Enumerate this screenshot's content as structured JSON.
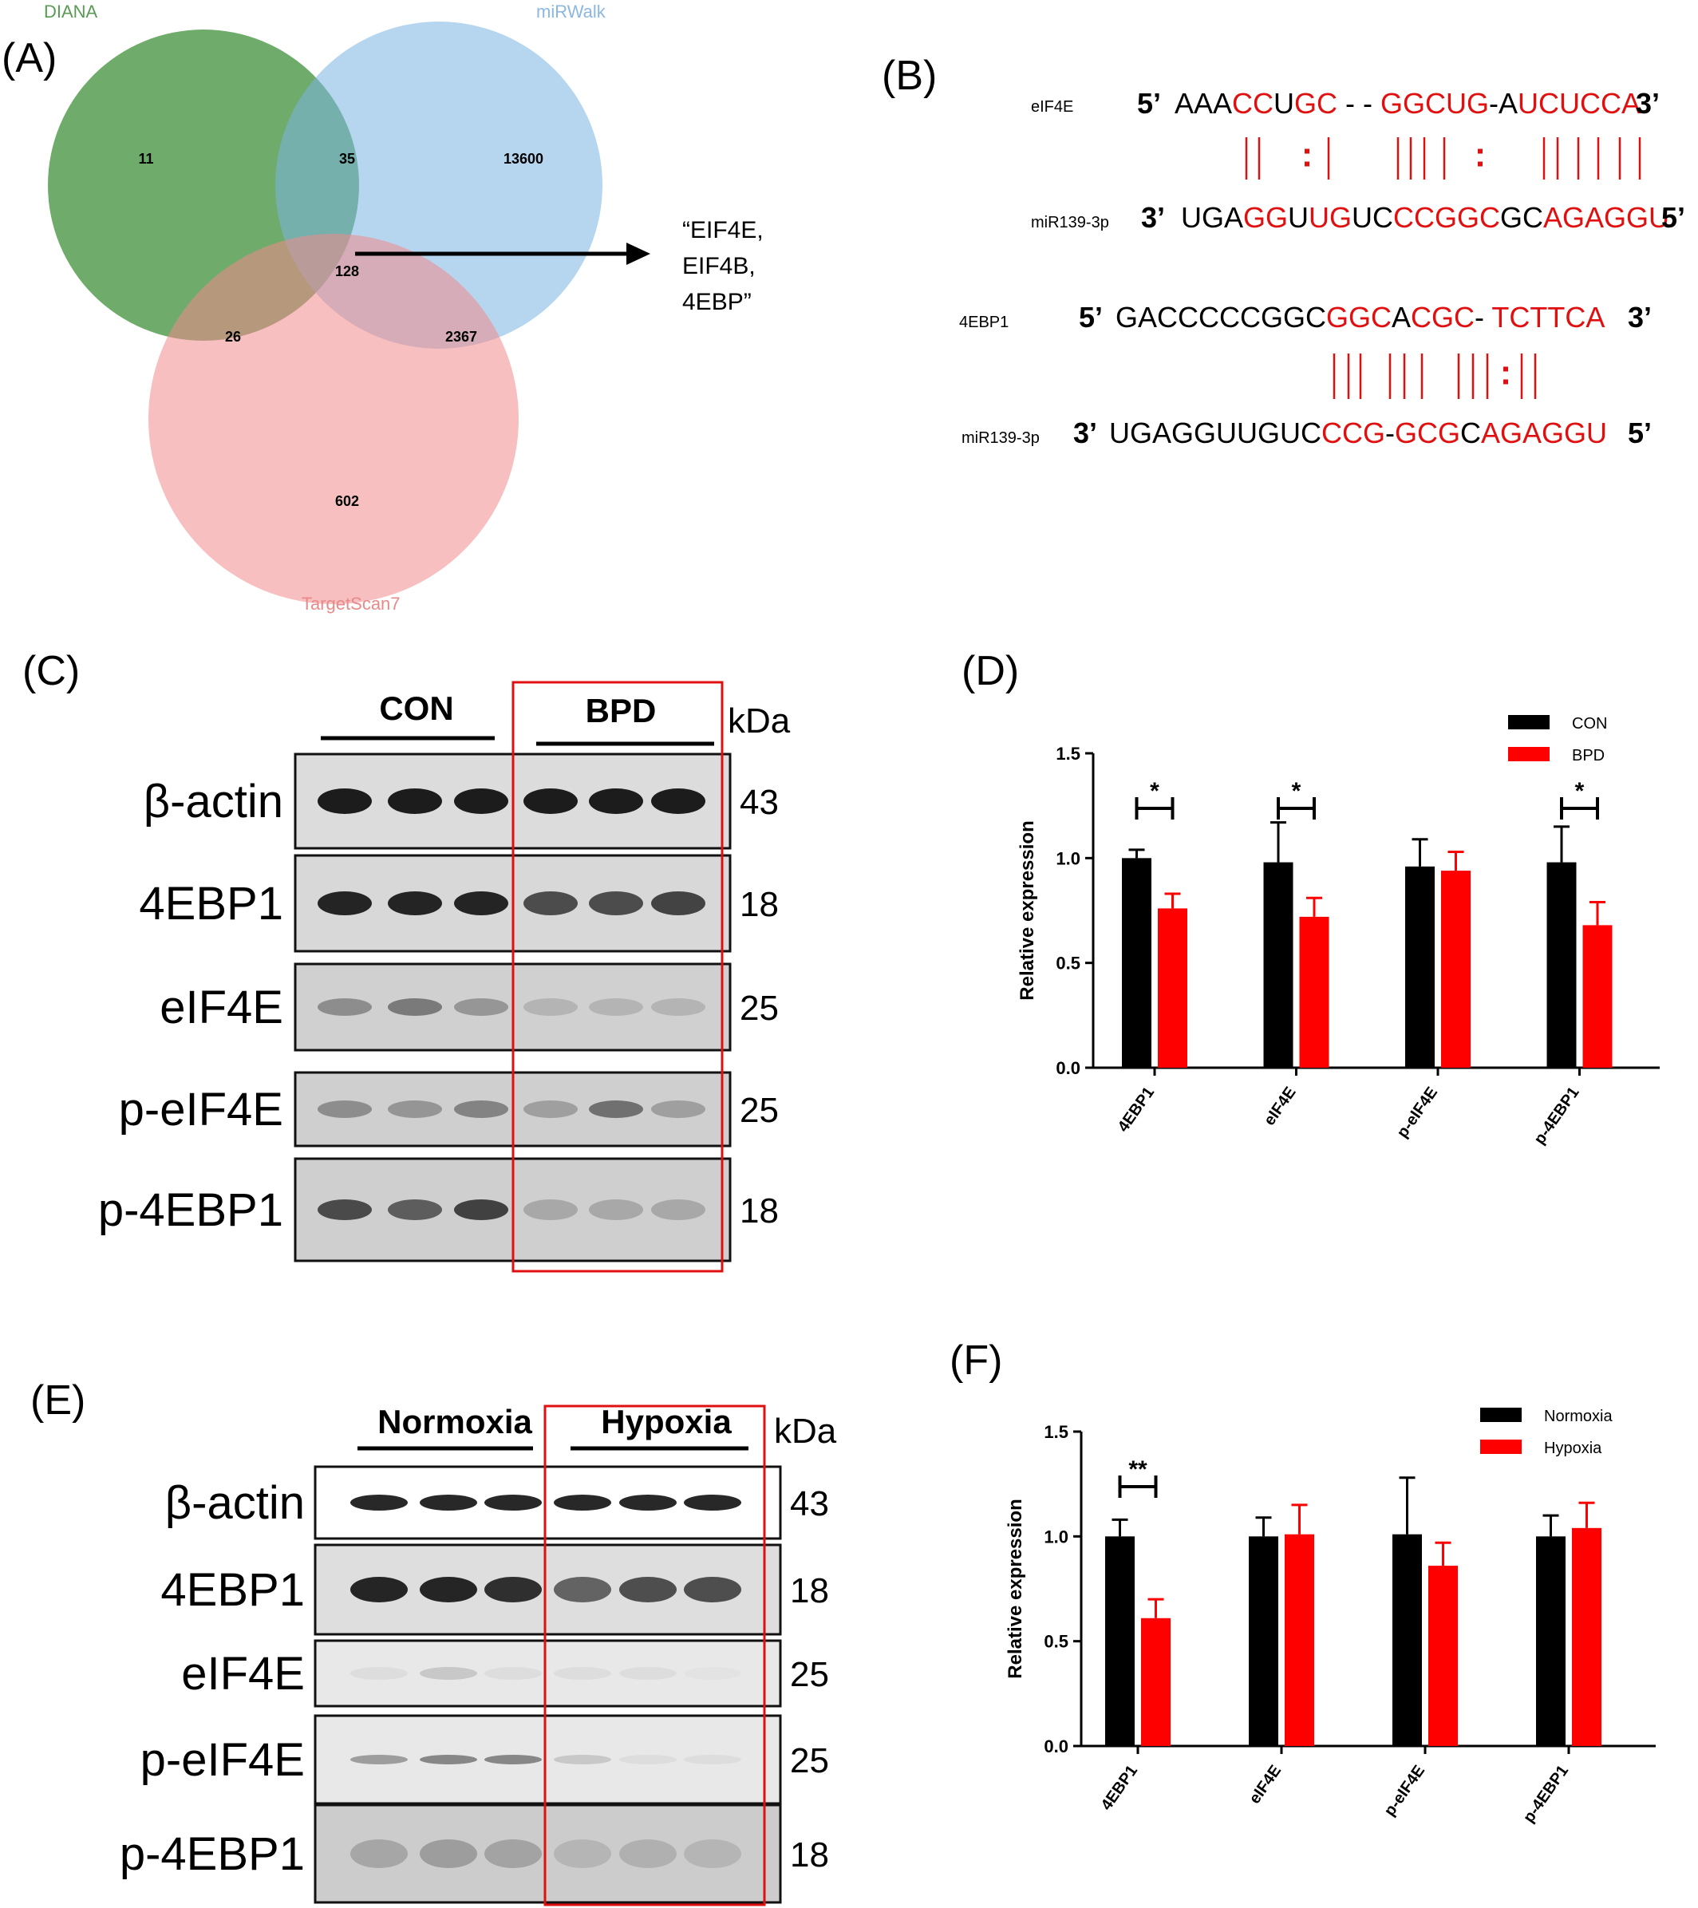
{
  "panels": {
    "A": "(A)",
    "B": "(B)",
    "C": "(C)",
    "D": "(D)",
    "E": "(E)",
    "F": "(F)"
  },
  "venn": {
    "sets": [
      "DIANA",
      "miRWalk",
      "TargetScan7"
    ],
    "regions": {
      "diana_only": "11",
      "diana_mirwalk": "35",
      "mirwalk_only": "13600",
      "all_three": "128",
      "diana_targetscan": "26",
      "mirwalk_targetscan": "2367",
      "targetscan_only": "602"
    },
    "callout": [
      "“EIF4E,",
      "EIF4B,",
      "4EBP”"
    ],
    "colors": {
      "diana": "#3f8f3a",
      "mirwalk": "#7ab4e2",
      "targetscan": "#f08a8a"
    }
  },
  "alignments": [
    {
      "target_name": "eIF4E",
      "target_prime5": "5’",
      "target_segments": [
        {
          "t": "AAA",
          "red": false
        },
        {
          "t": "CC",
          "red": true
        },
        {
          "t": "U",
          "red": false
        },
        {
          "t": "GC",
          "red": true
        },
        {
          "t": " - - ",
          "red": false
        },
        {
          "t": "GGCUG",
          "red": true
        },
        {
          "t": "-A",
          "red": false
        },
        {
          "t": "UCUCCA",
          "red": true
        }
      ],
      "target_prime3": "3’",
      "mirna_name": "miR139-3p",
      "mirna_prime3": "3’",
      "mirna_segments": [
        {
          "t": "UGA",
          "red": false
        },
        {
          "t": "GG",
          "red": true
        },
        {
          "t": "U",
          "red": false
        },
        {
          "t": "UG",
          "red": true
        },
        {
          "t": "UC",
          "red": false
        },
        {
          "t": "CCGGC",
          "red": true
        },
        {
          "t": "GC",
          "red": false
        },
        {
          "t": "AGAGGU",
          "red": true
        }
      ],
      "mirna_prime5": "5’"
    },
    {
      "target_name": "4EBP1",
      "target_prime5": "5’",
      "target_segments": [
        {
          "t": "GACCCCCGGC",
          "red": false
        },
        {
          "t": "GGC",
          "red": true
        },
        {
          "t": "A",
          "red": false
        },
        {
          "t": "CGC",
          "red": true
        },
        {
          "t": "- ",
          "red": false
        },
        {
          "t": "TCTTCA",
          "red": true
        }
      ],
      "target_prime3": "3’",
      "mirna_name": "miR139-3p",
      "mirna_prime3": "3’",
      "mirna_segments": [
        {
          "t": "UGAGGUUGUC",
          "red": false
        },
        {
          "t": "CCG",
          "red": true
        },
        {
          "t": "-",
          "red": false
        },
        {
          "t": "GCG",
          "red": true
        },
        {
          "t": "C",
          "red": false
        },
        {
          "t": "AGAGGU",
          "red": true
        }
      ],
      "mirna_prime5": "5’"
    }
  ],
  "blot_c": {
    "group1": "CON",
    "group2": "BPD",
    "kda_label": "kDa",
    "rows": [
      {
        "label": "β-actin",
        "kda": "43"
      },
      {
        "label": "4EBP1",
        "kda": "18"
      },
      {
        "label": "eIF4E",
        "kda": "25"
      },
      {
        "label": "p-eIF4E",
        "kda": "25"
      },
      {
        "label": "p-4EBP1",
        "kda": "18"
      }
    ]
  },
  "blot_e": {
    "group1": "Normoxia",
    "group2": "Hypoxia",
    "kda_label": "kDa",
    "rows": [
      {
        "label": "β-actin",
        "kda": "43"
      },
      {
        "label": "4EBP1",
        "kda": "18"
      },
      {
        "label": "eIF4E",
        "kda": "25"
      },
      {
        "label": "p-eIF4E",
        "kda": "25"
      },
      {
        "label": "p-4EBP1",
        "kda": "18"
      }
    ]
  },
  "chart_data": [
    {
      "type": "bar",
      "panel": "D",
      "categories": [
        "4EBP1",
        "eIF4E",
        "p-eIF4E",
        "p-4EBP1"
      ],
      "ylabel": "Relative expression",
      "ylim": [
        0,
        1.5
      ],
      "yticks": [
        "0.0",
        "0.5",
        "1.0",
        "1.5"
      ],
      "legend": "top-right",
      "series": [
        {
          "name": "CON",
          "color": "#000000",
          "values": [
            1.0,
            0.98,
            0.96,
            0.98
          ],
          "errors": [
            0.04,
            0.19,
            0.13,
            0.17
          ]
        },
        {
          "name": "BPD",
          "color": "#ff0000",
          "values": [
            0.76,
            0.72,
            0.94,
            0.68
          ],
          "errors": [
            0.07,
            0.09,
            0.09,
            0.11
          ]
        }
      ],
      "significance": [
        {
          "category": "4EBP1",
          "label": "*"
        },
        {
          "category": "eIF4E",
          "label": "*"
        },
        {
          "category": "p-4EBP1",
          "label": "*"
        }
      ]
    },
    {
      "type": "bar",
      "panel": "F",
      "categories": [
        "4EBP1",
        "eIF4E",
        "p-eIF4E",
        "p-4EBP1"
      ],
      "ylabel": "Relative expression",
      "ylim": [
        0,
        1.5
      ],
      "yticks": [
        "0.0",
        "0.5",
        "1.0",
        "1.5"
      ],
      "legend": "top-right",
      "series": [
        {
          "name": "Normoxia",
          "color": "#000000",
          "values": [
            1.0,
            1.0,
            1.01,
            1.0
          ],
          "errors": [
            0.08,
            0.09,
            0.27,
            0.1
          ]
        },
        {
          "name": "Hypoxia",
          "color": "#ff0000",
          "values": [
            0.61,
            1.01,
            0.86,
            1.04
          ],
          "errors": [
            0.09,
            0.14,
            0.11,
            0.12
          ]
        }
      ],
      "significance": [
        {
          "category": "4EBP1",
          "label": "**"
        }
      ]
    }
  ]
}
